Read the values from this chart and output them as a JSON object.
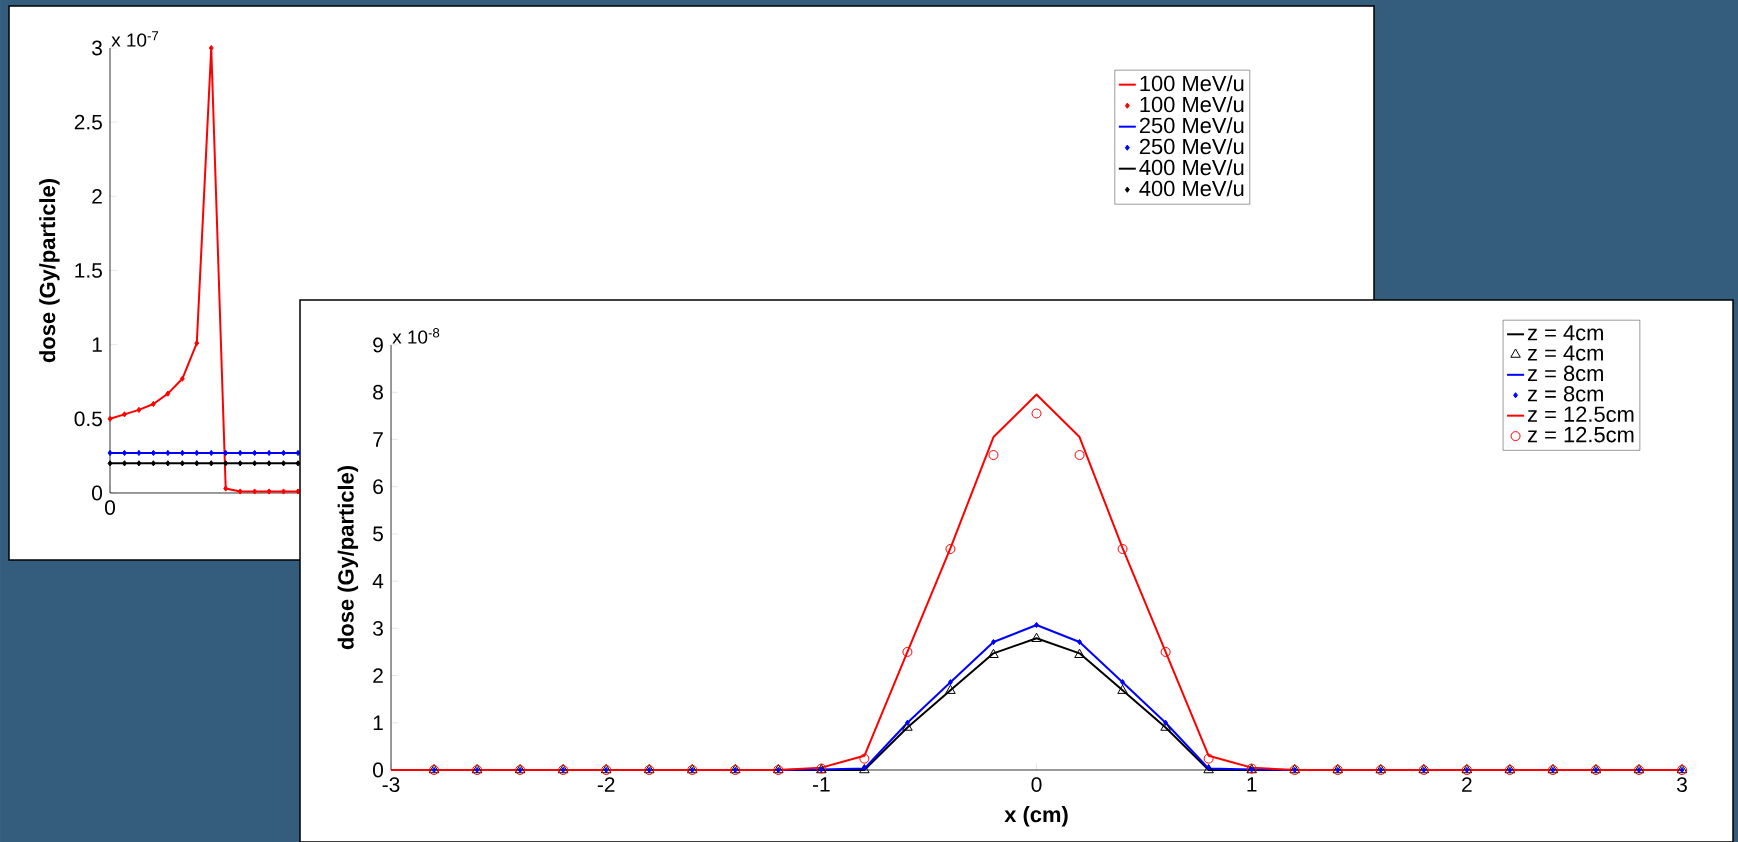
{
  "chart_data": [
    {
      "type": "line",
      "ylabel": "dose (Gy/particle)",
      "annotations": [
        "x 10$^{-7}$"
      ],
      "categories": [
        "0",
        null,
        null,
        null,
        null,
        null,
        null,
        null,
        null,
        null,
        null,
        null,
        null,
        null
      ],
      "ylim": [
        0,
        3
      ],
      "yticks": [
        0,
        0.5,
        1,
        1.5,
        2,
        2.5,
        3
      ],
      "legend": "top right",
      "series": [
        {
          "name": "100 MeV/u",
          "color": "#ff0000",
          "values": [
            0.5,
            0.53,
            0.56,
            0.6,
            0.67,
            0.77,
            1.01,
            3.0,
            0.03,
            0.01,
            0.01,
            0.01,
            0.01,
            0.01
          ]
        },
        {
          "name": "100 MeV/u",
          "type": "scatter",
          "marker": "diamond",
          "color": "#ff0000",
          "values": [
            0.5,
            0.53,
            0.56,
            0.6,
            0.67,
            0.77,
            1.01,
            3.0,
            0.03,
            0.01,
            0.01,
            0.01,
            0.01,
            0.01
          ]
        },
        {
          "name": "250 MeV/u",
          "color": "#0000ff",
          "values": [
            0.27,
            0.27,
            0.27,
            0.27,
            0.27,
            0.27,
            0.27,
            0.27,
            0.27,
            0.27,
            0.27,
            0.27,
            0.27,
            0.27
          ]
        },
        {
          "name": "250 MeV/u",
          "type": "scatter",
          "marker": "diamond",
          "color": "#0000ff",
          "values": [
            0.27,
            0.27,
            0.27,
            0.27,
            0.27,
            0.27,
            0.27,
            0.27,
            0.27,
            0.27,
            0.27,
            0.27,
            0.27,
            0.27
          ]
        },
        {
          "name": "400 MeV/u",
          "color": "#000000",
          "values": [
            0.2,
            0.2,
            0.2,
            0.2,
            0.2,
            0.2,
            0.2,
            0.2,
            0.2,
            0.2,
            0.2,
            0.2,
            0.2,
            0.2
          ]
        },
        {
          "name": "400 MeV/u",
          "type": "scatter",
          "marker": "diamond",
          "color": "#000000",
          "values": [
            0.2,
            0.2,
            0.2,
            0.2,
            0.2,
            0.2,
            0.2,
            0.2,
            0.2,
            0.2,
            0.2,
            0.2,
            0.2,
            0.2
          ]
        }
      ]
    },
    {
      "type": "line",
      "xlabel": "x (cm)",
      "ylabel": "dose (Gy/particle)",
      "annotations": [
        "x 10$^{-8}$"
      ],
      "xlim": [
        -3,
        3
      ],
      "xticks": [
        -3,
        -2,
        -1,
        0,
        1,
        2,
        3
      ],
      "ylim": [
        0,
        9
      ],
      "yticks": [
        0,
        1,
        2,
        3,
        4,
        5,
        6,
        7,
        8,
        9
      ],
      "legend": "top right",
      "series": [
        {
          "name": "z = 4cm",
          "color": "#000000",
          "x": [
            -3,
            -2.8,
            -2.6,
            -2.4,
            -2.2,
            -2,
            -1.8,
            -1.6,
            -1.4,
            -1.2,
            -1,
            -0.8,
            -0.6,
            -0.4,
            -0.2,
            0,
            0.2,
            0.4,
            0.6,
            0.8,
            1,
            1.2,
            1.4,
            1.6,
            1.8,
            2,
            2.2,
            2.4,
            2.6,
            2.8,
            3
          ],
          "values": [
            0,
            0,
            0,
            0,
            0,
            0,
            0,
            0,
            0,
            0,
            0,
            0,
            0.9,
            1.69,
            2.47,
            2.79,
            2.47,
            1.69,
            0.9,
            0,
            0,
            0,
            0,
            0,
            0,
            0,
            0,
            0,
            0,
            0,
            0
          ]
        },
        {
          "name": "z = 4cm",
          "type": "scatter",
          "marker": "triangle",
          "color": "#000000",
          "x": [
            -2.8,
            -2.6,
            -2.4,
            -2.2,
            -2,
            -1.8,
            -1.6,
            -1.4,
            -1.2,
            -1,
            -0.8,
            -0.6,
            -0.4,
            -0.2,
            0,
            0.2,
            0.4,
            0.6,
            0.8,
            1,
            1.2,
            1.4,
            1.6,
            1.8,
            2,
            2.2,
            2.4,
            2.6,
            2.8,
            3
          ],
          "values": [
            0,
            0,
            0,
            0,
            0,
            0,
            0,
            0,
            0,
            0,
            0,
            0.9,
            1.68,
            2.44,
            2.78,
            2.44,
            1.68,
            0.9,
            0,
            0,
            0,
            0,
            0,
            0,
            0,
            0,
            0,
            0,
            0,
            0
          ]
        },
        {
          "name": "z = 8cm",
          "color": "#0000ff",
          "x": [
            -3,
            -2.8,
            -2.6,
            -2.4,
            -2.2,
            -2,
            -1.8,
            -1.6,
            -1.4,
            -1.2,
            -1,
            -0.8,
            -0.6,
            -0.4,
            -0.2,
            0,
            0.2,
            0.4,
            0.6,
            0.8,
            1,
            1.2,
            1.4,
            1.6,
            1.8,
            2,
            2.2,
            2.4,
            2.6,
            2.8,
            3
          ],
          "values": [
            0,
            0,
            0,
            0,
            0,
            0,
            0,
            0,
            0,
            0,
            0.01,
            0.03,
            1.0,
            1.86,
            2.71,
            3.07,
            2.71,
            1.86,
            1.0,
            0.03,
            0.01,
            0,
            0,
            0,
            0,
            0,
            0,
            0,
            0,
            0,
            0
          ]
        },
        {
          "name": "z = 8cm",
          "type": "scatter",
          "marker": "diamond",
          "color": "#0000ff",
          "x": [
            -2.8,
            -2.6,
            -2.4,
            -2.2,
            -2,
            -1.8,
            -1.6,
            -1.4,
            -1.2,
            -1,
            -0.8,
            -0.6,
            -0.4,
            -0.2,
            0,
            0.2,
            0.4,
            0.6,
            0.8,
            1,
            1.2,
            1.4,
            1.6,
            1.8,
            2,
            2.2,
            2.4,
            2.6,
            2.8,
            3
          ],
          "values": [
            0,
            0,
            0,
            0,
            0,
            0,
            0,
            0,
            0,
            0.01,
            0.05,
            1.0,
            1.86,
            2.71,
            3.07,
            2.71,
            1.86,
            1.0,
            0.05,
            0.01,
            0,
            0,
            0,
            0,
            0,
            0,
            0,
            0,
            0,
            0
          ]
        },
        {
          "name": "z = 12.5cm",
          "color": "#ff0000",
          "x": [
            -3,
            -2.8,
            -2.6,
            -2.4,
            -2.2,
            -2,
            -1.8,
            -1.6,
            -1.4,
            -1.2,
            -1,
            -0.8,
            -0.6,
            -0.4,
            -0.2,
            0,
            0.2,
            0.4,
            0.6,
            0.8,
            1,
            1.2,
            1.4,
            1.6,
            1.8,
            2,
            2.2,
            2.4,
            2.6,
            2.8,
            3
          ],
          "values": [
            0,
            0,
            0,
            0,
            0,
            0,
            0,
            0,
            0,
            0,
            0.05,
            0.3,
            2.5,
            4.7,
            7.05,
            7.95,
            7.05,
            4.7,
            2.5,
            0.3,
            0.05,
            0,
            0,
            0,
            0,
            0,
            0,
            0,
            0,
            0,
            0
          ]
        },
        {
          "name": "z = 12.5cm",
          "type": "scatter",
          "marker": "circle",
          "color": "#ff0000",
          "x": [
            -2.8,
            -2.6,
            -2.4,
            -2.2,
            -2,
            -1.8,
            -1.6,
            -1.4,
            -1.2,
            -1,
            -0.8,
            -0.6,
            -0.4,
            -0.2,
            0,
            0.2,
            0.4,
            0.6,
            0.8,
            1,
            1.2,
            1.4,
            1.6,
            1.8,
            2,
            2.2,
            2.4,
            2.6,
            2.8,
            3
          ],
          "values": [
            0,
            0,
            0,
            0,
            0,
            0,
            0,
            0,
            0,
            0.03,
            0.24,
            2.5,
            4.68,
            6.67,
            7.55,
            6.67,
            4.68,
            2.5,
            0.24,
            0.03,
            0,
            0,
            0,
            0,
            0,
            0,
            0,
            0,
            0,
            0
          ]
        }
      ]
    }
  ]
}
